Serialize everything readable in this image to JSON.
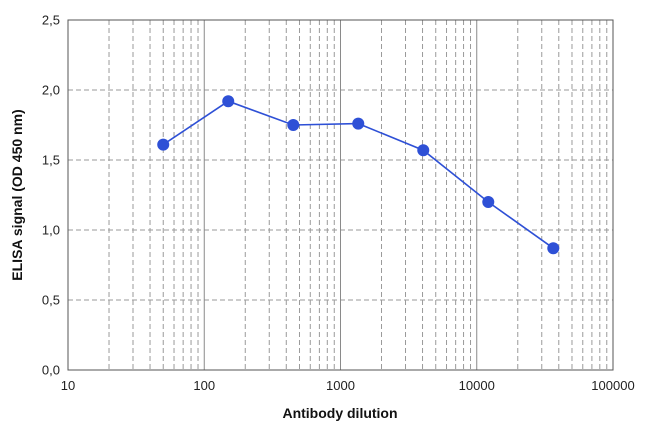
{
  "chart_data": {
    "type": "line",
    "title": "",
    "xlabel": "Antibody dilution",
    "ylabel": "ELISA signal (OD 450 nm)",
    "x_scale": "log",
    "xlim": [
      10,
      100000
    ],
    "ylim": [
      0,
      2.5
    ],
    "grid": true,
    "legend": "none",
    "x_tick_labels": [
      "10",
      "100",
      "1000",
      "10000",
      "100000"
    ],
    "y_tick_labels": [
      "0,0",
      "0,5",
      "1,0",
      "1,5",
      "2,0",
      "2,5"
    ],
    "series": [
      {
        "color": "#2e50d6",
        "x": [
          50,
          150,
          450,
          1350,
          4050,
          12150,
          36450
        ],
        "y": [
          1.61,
          1.92,
          1.75,
          1.76,
          1.57,
          1.2,
          0.87
        ]
      }
    ]
  }
}
